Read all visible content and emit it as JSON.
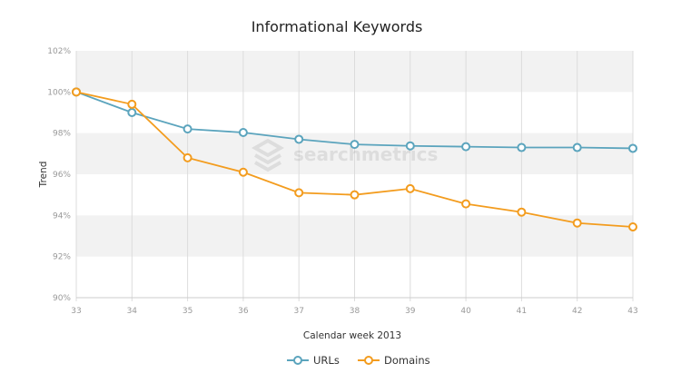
{
  "chart_data": {
    "type": "line",
    "title": "Informational Keywords",
    "xlabel": "Calendar week 2013",
    "ylabel": "Trend",
    "x": [
      33,
      34,
      35,
      36,
      37,
      38,
      39,
      40,
      41,
      42,
      43
    ],
    "x_ticks": [
      "33",
      "34",
      "35",
      "36",
      "37",
      "38",
      "39",
      "40",
      "41",
      "42",
      "43"
    ],
    "ylim": [
      90,
      102
    ],
    "y_ticks": [
      "90%",
      "92%",
      "94%",
      "96%",
      "98%",
      "100%",
      "102%"
    ],
    "grid": "vertical lines, alternating horizontal bands",
    "legend": "bottom",
    "series": [
      {
        "name": "URLs",
        "color": "#5ba4bd",
        "values": [
          100,
          99.0,
          98.2,
          98.03,
          97.7,
          97.45,
          97.38,
          97.34,
          97.3,
          97.3,
          97.26
        ]
      },
      {
        "name": "Domains",
        "color": "#f39c1e",
        "values": [
          100,
          99.4,
          96.8,
          96.1,
          95.1,
          95.0,
          95.3,
          94.56,
          94.16,
          93.63,
          93.44
        ]
      }
    ],
    "watermark": "searchmetrics"
  }
}
